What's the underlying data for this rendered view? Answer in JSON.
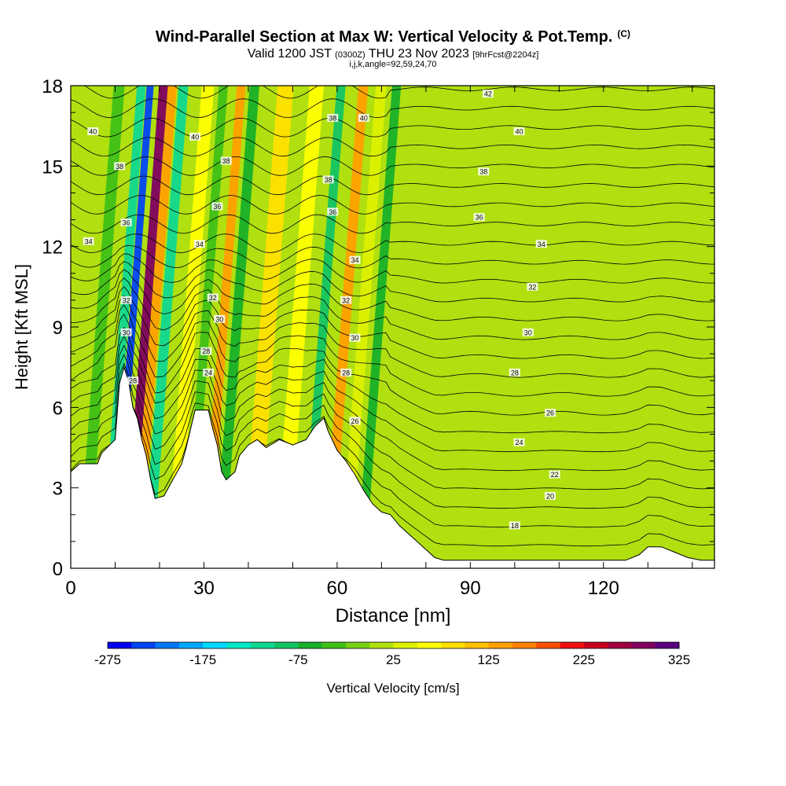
{
  "header": {
    "title": "Wind-Parallel Section at Max W: Vertical Velocity & Pot.Temp.",
    "title_mark": "(C)",
    "valid_main": "Valid 1200 JST",
    "valid_utc": "(0300Z)",
    "valid_date": "THU 23 Nov 2023",
    "forecast": "[9hrFcst@2204z]",
    "params": "i,j,k,angle=92,59,24,70"
  },
  "chart_data": {
    "type": "heatmap",
    "xlabel": "Distance [nm]",
    "ylabel": "Height [Kft MSL]",
    "xlim": [
      0,
      145
    ],
    "ylim": [
      0,
      18
    ],
    "x_ticks": [
      "0",
      "30",
      "60",
      "90",
      "120"
    ],
    "y_ticks": [
      "0",
      "3",
      "6",
      "9",
      "12",
      "15",
      "18"
    ],
    "grid": false,
    "colorbar": {
      "label": "Vertical Velocity [cm/s]",
      "tick_labels": [
        "-275",
        "-175",
        "-75",
        "25",
        "125",
        "225",
        "325"
      ],
      "min": -275,
      "max": 325,
      "step": 25,
      "colors": [
        "#0000f0",
        "#0044f4",
        "#0078f6",
        "#00a8f8",
        "#00d8ff",
        "#00e8c8",
        "#10d890",
        "#14c464",
        "#18b02a",
        "#40c018",
        "#78d014",
        "#b0e010",
        "#ddf000",
        "#ffff00",
        "#ffe000",
        "#ffc000",
        "#ffa000",
        "#ff8000",
        "#ff5000",
        "#f01010",
        "#c80020",
        "#a00040",
        "#800060",
        "#5a0080"
      ]
    },
    "terrain_kft": [
      [
        0,
        3.6
      ],
      [
        2,
        3.9
      ],
      [
        6,
        3.9
      ],
      [
        7,
        4.3
      ],
      [
        10,
        4.8
      ],
      [
        11,
        6.9
      ],
      [
        12,
        7.5
      ],
      [
        13,
        7.0
      ],
      [
        14,
        6.0
      ],
      [
        15,
        5.6
      ],
      [
        16,
        4.8
      ],
      [
        17,
        4.2
      ],
      [
        18,
        3.3
      ],
      [
        19,
        2.6
      ],
      [
        21,
        2.7
      ],
      [
        23,
        3.3
      ],
      [
        25,
        3.9
      ],
      [
        26,
        4.5
      ],
      [
        27,
        5.2
      ],
      [
        28,
        5.9
      ],
      [
        31,
        5.9
      ],
      [
        32,
        5.2
      ],
      [
        33,
        4.6
      ],
      [
        34,
        3.6
      ],
      [
        35,
        3.3
      ],
      [
        37,
        3.6
      ],
      [
        38,
        4.2
      ],
      [
        40,
        4.6
      ],
      [
        42,
        4.8
      ],
      [
        44,
        4.5
      ],
      [
        47,
        4.8
      ],
      [
        50,
        4.6
      ],
      [
        53,
        4.8
      ],
      [
        55,
        5.3
      ],
      [
        57,
        5.6
      ],
      [
        58,
        5.1
      ],
      [
        60,
        4.4
      ],
      [
        62,
        4.0
      ],
      [
        64,
        3.5
      ],
      [
        66,
        2.9
      ],
      [
        68,
        2.4
      ],
      [
        70,
        2.1
      ],
      [
        72,
        2.0
      ],
      [
        74,
        1.6
      ],
      [
        76,
        1.3
      ],
      [
        78,
        1.0
      ],
      [
        80,
        0.7
      ],
      [
        82,
        0.4
      ],
      [
        84,
        0.3
      ],
      [
        90,
        0.3
      ],
      [
        105,
        0.3
      ],
      [
        115,
        0.3
      ],
      [
        125,
        0.3
      ],
      [
        128,
        0.5
      ],
      [
        130,
        0.8
      ],
      [
        133,
        0.8
      ],
      [
        136,
        0.6
      ],
      [
        139,
        0.4
      ],
      [
        142,
        0.3
      ],
      [
        145,
        0.3
      ]
    ],
    "velocity_bands_cm_s": [
      {
        "x": 5.5,
        "value": -30,
        "width": 2.5
      },
      {
        "x": 10.5,
        "value": -120,
        "width": 2.0
      },
      {
        "x": 12.5,
        "value": -240,
        "width": 1.6
      },
      {
        "x": 15.5,
        "value": 280,
        "width": 2.0
      },
      {
        "x": 17.5,
        "value": 140,
        "width": 2.0
      },
      {
        "x": 20.0,
        "value": -110,
        "width": 2.2
      },
      {
        "x": 25.5,
        "value": 70,
        "width": 2.8
      },
      {
        "x": 29.0,
        "value": -40,
        "width": 2.0
      },
      {
        "x": 33.0,
        "value": 140,
        "width": 2.0
      },
      {
        "x": 36.0,
        "value": -70,
        "width": 2.2
      },
      {
        "x": 43.0,
        "value": 90,
        "width": 3.6
      },
      {
        "x": 50.0,
        "value": 50,
        "width": 3.2
      },
      {
        "x": 55.5,
        "value": -90,
        "width": 2.0
      },
      {
        "x": 60.5,
        "value": 140,
        "width": 2.2
      },
      {
        "x": 64.5,
        "value": 40,
        "width": 2.4
      },
      {
        "x": 68.0,
        "value": -60,
        "width": 2.0
      }
    ],
    "pot_temp_labels_c": [
      {
        "x": 5,
        "y": 16.3,
        "label": "40"
      },
      {
        "x": 11,
        "y": 15.0,
        "label": "38"
      },
      {
        "x": 4,
        "y": 12.2,
        "label": "34"
      },
      {
        "x": 12.5,
        "y": 12.9,
        "label": "36"
      },
      {
        "x": 12.5,
        "y": 10.0,
        "label": "32"
      },
      {
        "x": 12.5,
        "y": 8.8,
        "label": "30"
      },
      {
        "x": 14,
        "y": 7.0,
        "label": "28"
      },
      {
        "x": 28,
        "y": 16.1,
        "label": "40"
      },
      {
        "x": 35,
        "y": 15.2,
        "label": "38"
      },
      {
        "x": 33,
        "y": 13.5,
        "label": "36"
      },
      {
        "x": 29,
        "y": 12.1,
        "label": "34"
      },
      {
        "x": 32,
        "y": 10.1,
        "label": "32"
      },
      {
        "x": 33.5,
        "y": 9.3,
        "label": "30"
      },
      {
        "x": 30.5,
        "y": 8.1,
        "label": "28"
      },
      {
        "x": 31,
        "y": 7.3,
        "label": "24"
      },
      {
        "x": 59,
        "y": 16.8,
        "label": "38"
      },
      {
        "x": 66,
        "y": 16.8,
        "label": "40"
      },
      {
        "x": 58,
        "y": 14.5,
        "label": "38"
      },
      {
        "x": 59,
        "y": 13.3,
        "label": "36"
      },
      {
        "x": 64,
        "y": 11.5,
        "label": "34"
      },
      {
        "x": 62,
        "y": 10.0,
        "label": "32"
      },
      {
        "x": 64,
        "y": 8.6,
        "label": "30"
      },
      {
        "x": 62,
        "y": 7.3,
        "label": "28"
      },
      {
        "x": 64,
        "y": 5.5,
        "label": "26"
      },
      {
        "x": 94,
        "y": 17.7,
        "label": "42"
      },
      {
        "x": 101,
        "y": 16.3,
        "label": "40"
      },
      {
        "x": 93,
        "y": 14.8,
        "label": "38"
      },
      {
        "x": 92,
        "y": 13.1,
        "label": "36"
      },
      {
        "x": 106,
        "y": 12.1,
        "label": "34"
      },
      {
        "x": 104,
        "y": 10.5,
        "label": "32"
      },
      {
        "x": 103,
        "y": 8.8,
        "label": "30"
      },
      {
        "x": 100,
        "y": 7.3,
        "label": "28"
      },
      {
        "x": 108,
        "y": 5.8,
        "label": "26"
      },
      {
        "x": 101,
        "y": 4.7,
        "label": "24"
      },
      {
        "x": 109,
        "y": 3.5,
        "label": "22"
      },
      {
        "x": 108,
        "y": 2.7,
        "label": "20"
      },
      {
        "x": 100,
        "y": 1.6,
        "label": "18"
      }
    ]
  }
}
